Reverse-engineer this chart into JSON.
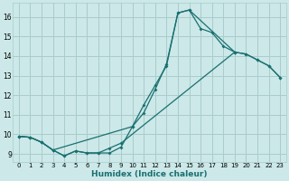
{
  "xlabel": "Humidex (Indice chaleur)",
  "bg_color": "#cce8e8",
  "grid_color": "#aacccc",
  "line_color": "#1a7070",
  "xlim": [
    -0.5,
    23.5
  ],
  "ylim": [
    8.6,
    16.7
  ],
  "xticks": [
    0,
    1,
    2,
    3,
    4,
    5,
    6,
    7,
    8,
    9,
    10,
    11,
    12,
    13,
    14,
    15,
    16,
    17,
    18,
    19,
    20,
    21,
    22,
    23
  ],
  "yticks": [
    9,
    10,
    11,
    12,
    13,
    14,
    15,
    16
  ],
  "line1_x": [
    0,
    1,
    2,
    3,
    4,
    5,
    6,
    7,
    8,
    9,
    10,
    11,
    12,
    13,
    14,
    15,
    16,
    17,
    18,
    19
  ],
  "line1_y": [
    9.9,
    9.85,
    9.6,
    9.2,
    8.9,
    9.15,
    9.05,
    9.05,
    9.05,
    9.35,
    10.4,
    11.1,
    12.3,
    13.6,
    16.2,
    16.35,
    15.4,
    15.2,
    14.5,
    14.2
  ],
  "line2_x": [
    0,
    1,
    2,
    3,
    10,
    11,
    12,
    13,
    14,
    15,
    19,
    20,
    21,
    22,
    23
  ],
  "line2_y": [
    9.9,
    9.85,
    9.6,
    9.2,
    10.4,
    11.5,
    12.5,
    13.5,
    16.2,
    16.35,
    14.2,
    14.1,
    13.8,
    13.5,
    12.9
  ],
  "line3_x": [
    0,
    1,
    2,
    3,
    4,
    5,
    6,
    7,
    8,
    9,
    19,
    20,
    21,
    22,
    23
  ],
  "line3_y": [
    9.9,
    9.85,
    9.6,
    9.2,
    8.9,
    9.15,
    9.05,
    9.05,
    9.3,
    9.55,
    14.2,
    14.1,
    13.8,
    13.5,
    12.9
  ]
}
